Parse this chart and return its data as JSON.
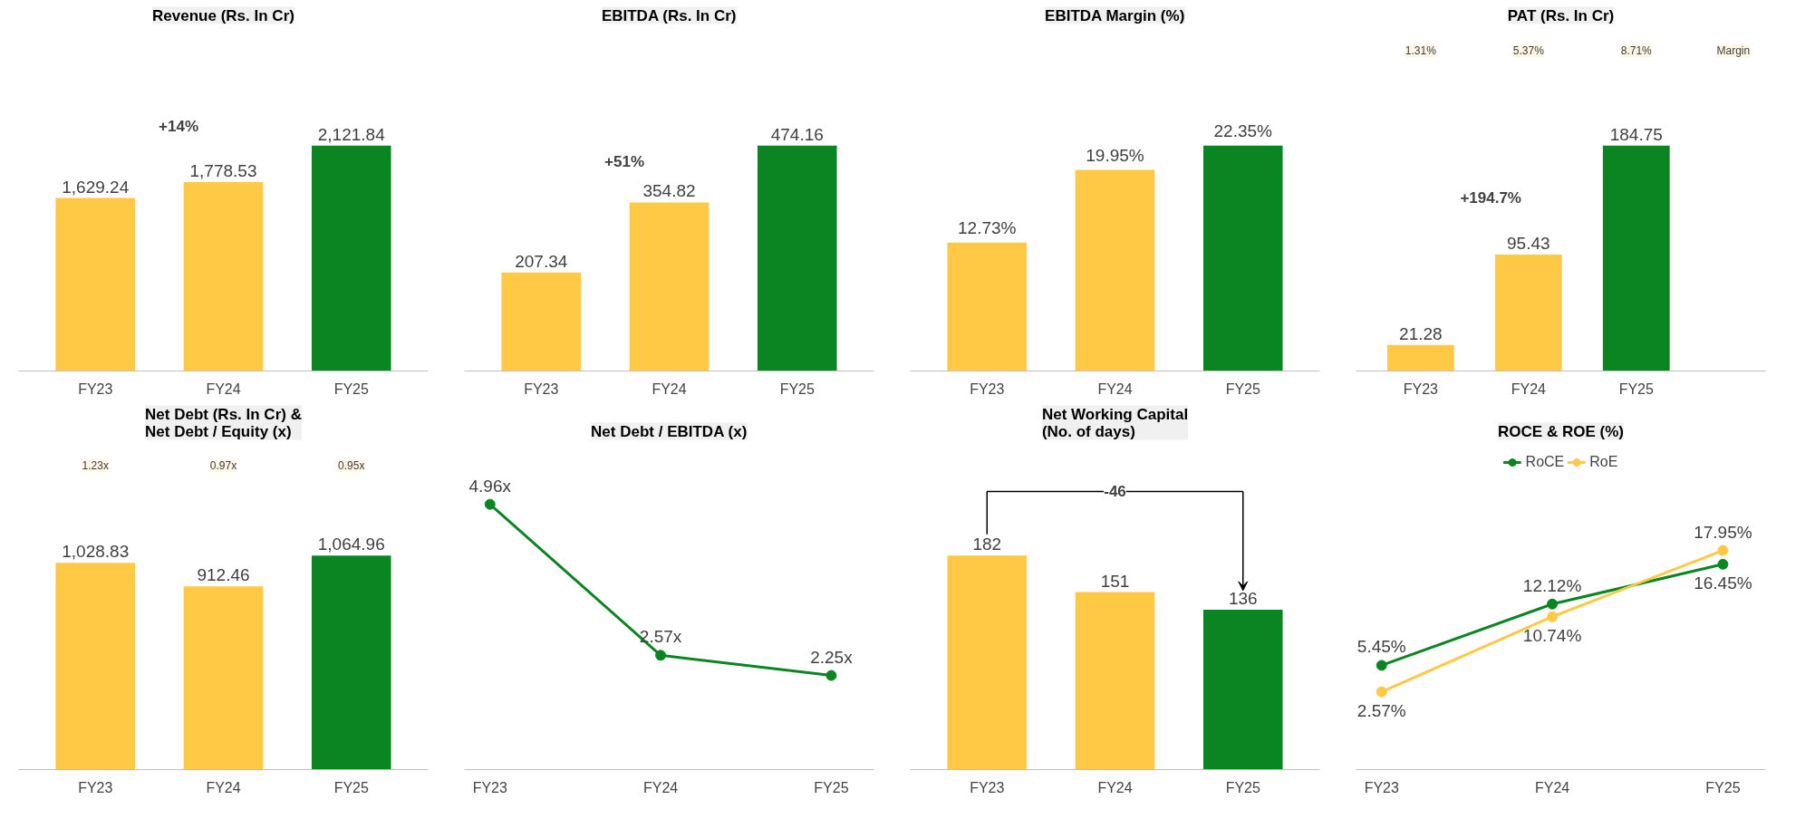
{
  "chart_data": [
    {
      "type": "bar",
      "title": "Revenue (Rs. In Cr)",
      "categories": [
        "FY23",
        "FY24",
        "FY25"
      ],
      "values": [
        1629.24,
        1778.53,
        2121.84
      ],
      "value_labels": [
        "1,629.24",
        "1,778.53",
        "2,121.84"
      ],
      "colors": [
        "#ffc845",
        "#ffc845",
        "#0a8522"
      ],
      "annotations": [
        "+14%"
      ],
      "tick_labels": "x"
    },
    {
      "type": "bar",
      "title": "EBITDA (Rs. In Cr)",
      "categories": [
        "FY23",
        "FY24",
        "FY25"
      ],
      "values": [
        207.34,
        354.82,
        474.16
      ],
      "value_labels": [
        "207.34",
        "354.82",
        "474.16"
      ],
      "colors": [
        "#ffc845",
        "#ffc845",
        "#0a8522"
      ],
      "annotations": [
        "+51%"
      ],
      "tick_labels": "x"
    },
    {
      "type": "bar",
      "title": "EBITDA Margin (%)",
      "categories": [
        "FY23",
        "FY24",
        "FY25"
      ],
      "values": [
        12.73,
        19.95,
        22.35
      ],
      "value_labels": [
        "12.73%",
        "19.95%",
        "22.35%"
      ],
      "colors": [
        "#ffc845",
        "#ffc845",
        "#0a8522"
      ],
      "tick_labels": "x"
    },
    {
      "type": "bar",
      "title": "PAT (Rs. In Cr)",
      "categories": [
        "FY23",
        "FY24",
        "FY25"
      ],
      "values": [
        21.28,
        95.43,
        184.75
      ],
      "value_labels": [
        "21.28",
        "95.43",
        "184.75"
      ],
      "colors": [
        "#ffc845",
        "#ffc845",
        "#0a8522"
      ],
      "annotations": [
        "1.31%",
        "5.37%",
        "8.71%",
        "+194.7%",
        "Margin"
      ],
      "tick_labels": "x"
    },
    {
      "type": "bar",
      "title": "Net Debt (Rs. In Cr) &\nNet Debt / Equity (x)",
      "categories": [
        "FY23",
        "FY24",
        "FY25"
      ],
      "values": [
        1028.83,
        912.46,
        1064.96
      ],
      "value_labels": [
        "1,028.83",
        "912.46",
        "1,064.96"
      ],
      "colors": [
        "#ffc845",
        "#ffc845",
        "#0a8522"
      ],
      "annotations": [
        "1.23x",
        "0.97x",
        "0.95x"
      ],
      "tick_labels": "x"
    },
    {
      "type": "line",
      "title": "Net Debt / EBITDA (x)",
      "categories": [
        "FY23",
        "FY24",
        "FY25"
      ],
      "series": [
        {
          "color": "#0a8522",
          "values": [
            4.96,
            2.57,
            2.25
          ],
          "value_labels": [
            "4.96x",
            "2.57x",
            "2.25x"
          ]
        }
      ],
      "marker": "circle",
      "tick_labels": "x"
    },
    {
      "type": "bar",
      "title": "Net Working Capital\n(No. of days)",
      "categories": [
        "FY23",
        "FY24",
        "FY25"
      ],
      "values": [
        182,
        151,
        136
      ],
      "value_labels": [
        "182",
        "151",
        "136"
      ],
      "colors": [
        "#ffc845",
        "#ffc845",
        "#0a8522"
      ],
      "annotations": [
        "-46"
      ],
      "tick_labels": "x"
    },
    {
      "type": "line",
      "title": "ROCE & ROE (%)",
      "categories": [
        "FY23",
        "FY24",
        "FY25"
      ],
      "series": [
        {
          "name": "RoCE",
          "color": "#0a8522",
          "values": [
            5.45,
            12.12,
            16.45
          ],
          "value_labels": [
            "5.45%",
            "12.12%",
            "16.45%"
          ]
        },
        {
          "name": "RoE",
          "color": "#ffc845",
          "values": [
            2.57,
            10.74,
            17.95
          ],
          "value_labels": [
            "2.57%",
            "10.74%",
            "17.95%"
          ]
        }
      ],
      "marker": "circle",
      "legend": "top",
      "tick_labels": "x"
    }
  ]
}
